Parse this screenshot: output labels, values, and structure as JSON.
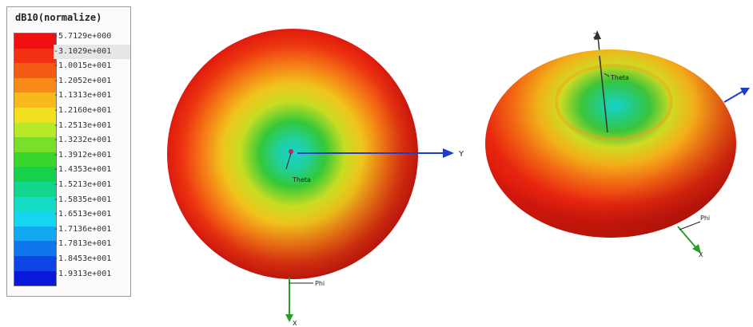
{
  "legend": {
    "title": "dB10(normalize)",
    "entries": [
      {
        "label": "-5.7129e+000",
        "color": "#ef1010",
        "highlight": false
      },
      {
        "label": "-3.1029e+001",
        "color": "#f23012",
        "highlight": true
      },
      {
        "label": "-1.0015e+001",
        "color": "#f55a14",
        "highlight": false
      },
      {
        "label": "-1.2052e+001",
        "color": "#f88a18",
        "highlight": false
      },
      {
        "label": "-1.1313e+001",
        "color": "#f8b91c",
        "highlight": false
      },
      {
        "label": "-1.2160e+001",
        "color": "#f0e020",
        "highlight": false
      },
      {
        "label": "-1.2513e+001",
        "color": "#b8e826",
        "highlight": false
      },
      {
        "label": "-1.3232e+001",
        "color": "#78e02a",
        "highlight": false
      },
      {
        "label": "-1.3912e+001",
        "color": "#3ad62c",
        "highlight": false
      },
      {
        "label": "-1.4353e+001",
        "color": "#16d24a",
        "highlight": false
      },
      {
        "label": "-1.5213e+001",
        "color": "#12d68e",
        "highlight": false
      },
      {
        "label": "-1.5835e+001",
        "color": "#14dcc4",
        "highlight": false
      },
      {
        "label": "-1.6513e+001",
        "color": "#14d6f0",
        "highlight": false
      },
      {
        "label": "-1.7136e+001",
        "color": "#12a8f2",
        "highlight": false
      },
      {
        "label": "-1.7813e+001",
        "color": "#1076ee",
        "highlight": false
      },
      {
        "label": "-1.8453e+001",
        "color": "#0c44e6",
        "highlight": false
      },
      {
        "label": "-1.9313e+001",
        "color": "#0a18dc",
        "highlight": false
      }
    ]
  },
  "top_view": {
    "y_axis_label": "Y",
    "phi_label": "Phi",
    "x_axis_label": "X",
    "theta_label": "Theta"
  },
  "iso_view": {
    "z_axis_label": "Z",
    "theta_label": "Theta",
    "phi_label": "Phi",
    "x_axis_label": "X"
  },
  "colors": {
    "outer": "#e81e10",
    "mid_orange": "#f57a16",
    "yellow": "#e8d420",
    "green": "#34c83a",
    "cyan": "#18d2cc",
    "axis_blue": "#1e3ec8",
    "axis_green": "#28a028"
  }
}
